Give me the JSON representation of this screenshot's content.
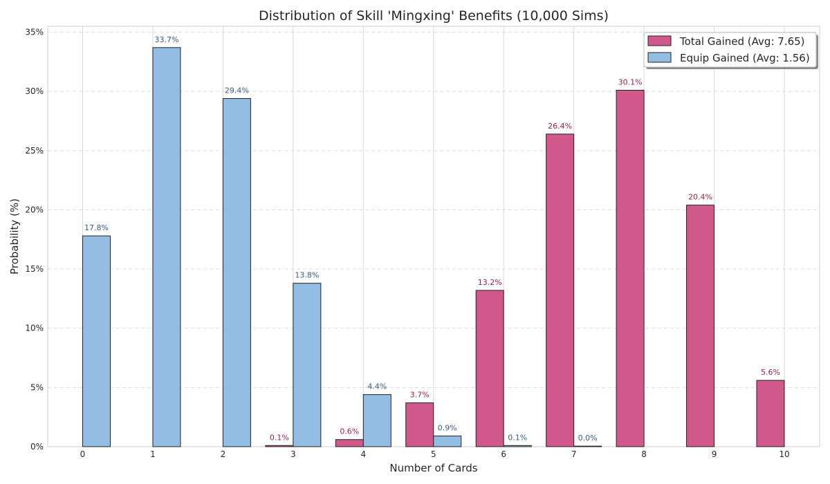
{
  "chart_data": {
    "type": "bar",
    "title": "Distribution of Skill 'Mingxing' Benefits (10,000 Sims)",
    "xlabel": "Number of Cards",
    "ylabel": "Probability (%)",
    "categories": [
      "0",
      "1",
      "2",
      "3",
      "4",
      "5",
      "6",
      "7",
      "8",
      "9",
      "10"
    ],
    "ylim": [
      0,
      35.5
    ],
    "yticks": [
      0,
      5,
      10,
      15,
      20,
      25,
      30,
      35
    ],
    "ytick_labels": [
      "0%",
      "5%",
      "10%",
      "15%",
      "20%",
      "25%",
      "30%",
      "35%"
    ],
    "grid": true,
    "legend_position": "top-right",
    "series": [
      {
        "name": "Total Gained (Avg: 7.65)",
        "color": "#d0588b",
        "label_color": "#8c2350",
        "values": [
          null,
          null,
          null,
          0.1,
          0.6,
          3.7,
          13.2,
          26.4,
          30.1,
          20.4,
          5.6
        ],
        "labels": [
          "",
          "",
          "",
          "0.1%",
          "0.6%",
          "3.7%",
          "13.2%",
          "26.4%",
          "30.1%",
          "20.4%",
          "5.6%"
        ]
      },
      {
        "name": "Equip Gained (Avg: 1.56)",
        "color": "#93bde2",
        "label_color": "#3a5a80",
        "values": [
          17.8,
          33.7,
          29.4,
          13.8,
          4.4,
          0.9,
          0.1,
          0.0,
          null,
          null,
          null
        ],
        "labels": [
          "17.8%",
          "33.7%",
          "29.4%",
          "13.8%",
          "4.4%",
          "0.9%",
          "0.1%",
          "0.0%",
          "",
          "",
          ""
        ]
      }
    ]
  }
}
